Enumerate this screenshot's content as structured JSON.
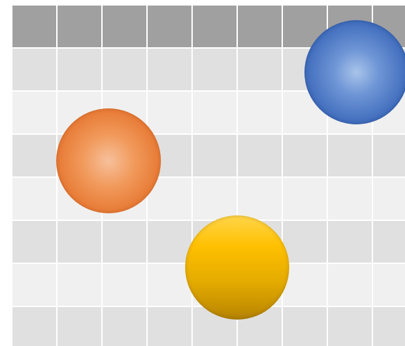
{
  "grid": {
    "rows": 8,
    "columns": 9,
    "header_color": "#a0a0a0",
    "band_colors": [
      "#e0e0e0",
      "#f0f0f0"
    ],
    "line_color": "#ffffff"
  },
  "spheres": [
    {
      "name": "blue-sphere",
      "color": "#4472c4"
    },
    {
      "name": "orange-sphere",
      "color": "#ed7d31"
    },
    {
      "name": "gold-sphere",
      "color": "#ffc000"
    }
  ]
}
